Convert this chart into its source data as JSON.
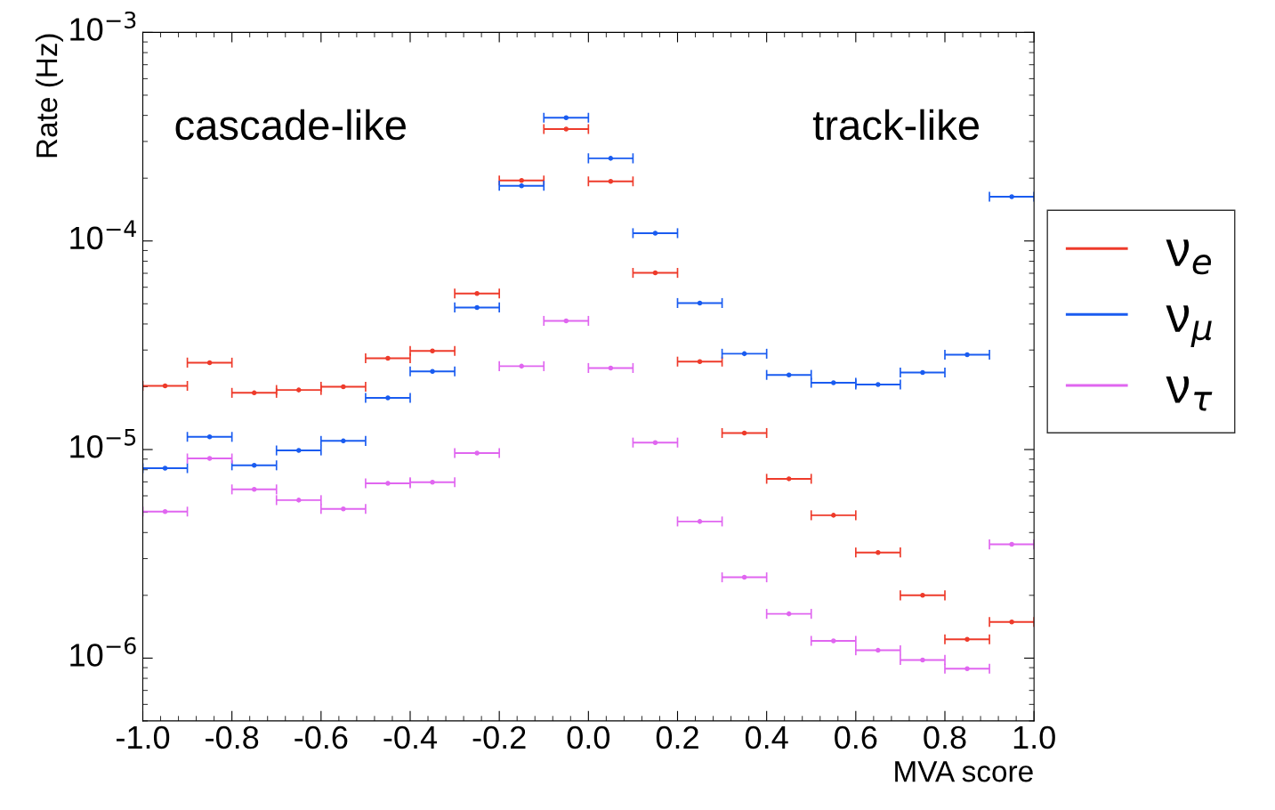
{
  "chart_data": {
    "type": "scatter",
    "xlabel": "MVA score",
    "ylabel": "Rate (Hz)",
    "x": [
      -0.95,
      -0.85,
      -0.75,
      -0.65,
      -0.55,
      -0.45,
      -0.35,
      -0.25,
      -0.15,
      -0.05,
      0.05,
      0.15,
      0.25,
      0.35,
      0.45,
      0.55,
      0.65,
      0.75,
      0.85,
      0.95
    ],
    "series": [
      {
        "name": "ν$_{e}$",
        "color": "#ee3b2b",
        "values": [
          2.02e-05,
          2.61e-05,
          1.87e-05,
          1.93e-05,
          2e-05,
          2.74e-05,
          2.97e-05,
          5.6e-05,
          0.000195,
          0.000344,
          0.000193,
          7.03e-05,
          2.64e-05,
          1.2e-05,
          7.24e-06,
          4.84e-06,
          3.21e-06,
          2e-06,
          1.23e-06,
          1.49e-06
        ],
        "xerrors": [
          0.05,
          0.05,
          0.05,
          0.05,
          0.05,
          0.05,
          0.05,
          0.05,
          0.05,
          0.05,
          0.05,
          0.05,
          0.05,
          0.05,
          0.05,
          0.05,
          0.05,
          0.05,
          0.05,
          0.05
        ]
      },
      {
        "name": "ν$_{μ}$",
        "color": "#1a5cf0",
        "values": [
          8.14e-06,
          1.15e-05,
          8.4e-06,
          9.9e-06,
          1.1e-05,
          1.77e-05,
          2.37e-05,
          4.8e-05,
          0.000184,
          0.00039,
          0.000249,
          0.000109,
          5.04e-05,
          2.88e-05,
          2.28e-05,
          2.09e-05,
          2.05e-05,
          2.34e-05,
          2.85e-05,
          0.000163
        ],
        "xerrors": [
          0.05,
          0.05,
          0.05,
          0.05,
          0.05,
          0.05,
          0.05,
          0.05,
          0.05,
          0.05,
          0.05,
          0.05,
          0.05,
          0.05,
          0.05,
          0.05,
          0.05,
          0.05,
          0.05,
          0.05
        ]
      },
      {
        "name": "ν$_{τ}$",
        "color": "#e066f0",
        "values": [
          5.04e-06,
          9.06e-06,
          6.44e-06,
          5.72e-06,
          5.19e-06,
          6.89e-06,
          6.97e-06,
          9.62e-06,
          2.51e-05,
          4.14e-05,
          2.46e-05,
          1.08e-05,
          4.52e-06,
          2.44e-06,
          1.63e-06,
          1.21e-06,
          1.09e-06,
          9.8e-07,
          8.9e-07,
          3.51e-06
        ],
        "xerrors": [
          0.05,
          0.05,
          0.05,
          0.05,
          0.05,
          0.05,
          0.05,
          0.05,
          0.05,
          0.05,
          0.05,
          0.05,
          0.05,
          0.05,
          0.05,
          0.05,
          0.05,
          0.05,
          0.05,
          0.05
        ]
      }
    ],
    "marker": "circle",
    "log": "y",
    "xlim": [
      -1.0,
      1.0
    ],
    "xticks": [
      {
        "value": -1.0,
        "label": "-1.0"
      },
      {
        "value": -0.8,
        "label": "-0.8"
      },
      {
        "value": -0.6,
        "label": "-0.6"
      },
      {
        "value": -0.4,
        "label": "-0.4"
      },
      {
        "value": -0.2,
        "label": "-0.2"
      },
      {
        "value": 0.0,
        "label": "0.0"
      },
      {
        "value": 0.2,
        "label": "0.2"
      },
      {
        "value": 0.4,
        "label": "0.4"
      },
      {
        "value": 0.6,
        "label": "0.6"
      },
      {
        "value": 0.8,
        "label": "0.8"
      },
      {
        "value": 1.0,
        "label": "1.0"
      }
    ],
    "ylim": [
      5e-07,
      0.001
    ],
    "yticks": [
      {
        "value": 1e-06,
        "label": "10$^{−6}$"
      },
      {
        "value": 1e-05,
        "label": "10$^{−5}$"
      },
      {
        "value": 0.0001,
        "label": "10$^{−4}$"
      },
      {
        "value": 0.001,
        "label": "10$^{−3}$"
      }
    ],
    "annotations": [
      "cascade-like",
      "track-like"
    ],
    "legend": "right",
    "grid": false
  }
}
